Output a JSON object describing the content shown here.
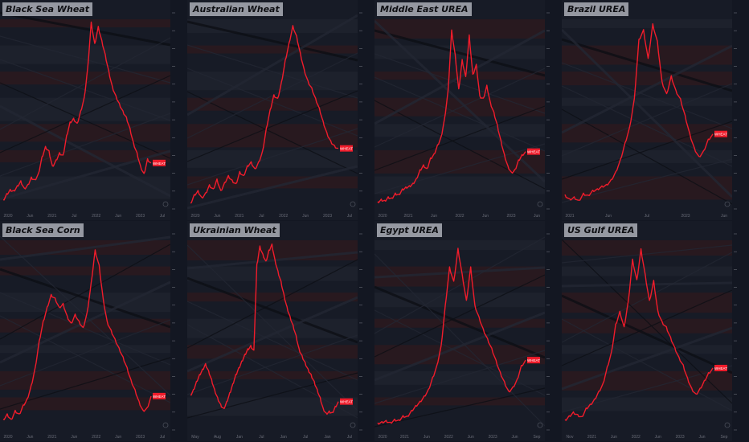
{
  "layout": {
    "columns": 4,
    "rows": 2
  },
  "colors": {
    "background": "#131722",
    "panel": "#171b26",
    "band_dark": "#1e222d",
    "band_red": "#2a1a1f",
    "line": "#f01c2b",
    "diag": "#232733",
    "grid": "#262a35",
    "axis_text": "#6a6d78",
    "label_bg": "#f01c2b"
  },
  "price_label_text": "WHEAT",
  "chart_data": [
    {
      "type": "line",
      "title": "Black Sea Wheat",
      "x_ticks": [
        "2020",
        "Jun",
        "2021",
        "Jul",
        "2022",
        "Jun",
        "2023",
        "Jul"
      ],
      "y_ticks": [],
      "series": [
        {
          "values": [
            195,
            205,
            212,
            210,
            218,
            226,
            214,
            220,
            232,
            228,
            238,
            265,
            282,
            275,
            250,
            260,
            272,
            268,
            300,
            322,
            328,
            320,
            340,
            362,
            410,
            485,
            450,
            478,
            455,
            432,
            405,
            380,
            365,
            352,
            340,
            330,
            312,
            288,
            272,
            250,
            238,
            262,
            255
          ]
        }
      ],
      "ylim": [
        180,
        500
      ]
    },
    {
      "type": "line",
      "title": "Australian Wheat",
      "x_ticks": [
        "2020",
        "Jun",
        "2021",
        "Jul",
        "2022",
        "Jun",
        "2023",
        "Jul"
      ],
      "y_ticks": [],
      "series": [
        {
          "values": [
            190,
            205,
            212,
            200,
            208,
            222,
            215,
            232,
            212,
            226,
            238,
            230,
            224,
            245,
            238,
            255,
            262,
            250,
            262,
            280,
            320,
            352,
            378,
            372,
            400,
            438,
            468,
            498,
            480,
            450,
            422,
            402,
            390,
            372,
            355,
            332,
            312,
            298,
            290,
            285
          ]
        }
      ],
      "ylim": [
        180,
        520
      ]
    },
    {
      "type": "line",
      "title": "Middle East UREA",
      "x_ticks": [
        "2020",
        "2021",
        "Jun",
        "2022",
        "Jun",
        "2023",
        "Jun"
      ],
      "y_ticks": [],
      "series": [
        {
          "values": [
            180,
            190,
            185,
            200,
            195,
            215,
            210,
            232,
            240,
            245,
            255,
            275,
            310,
            330,
            315,
            358,
            375,
            412,
            445,
            520,
            635,
            880,
            780,
            640,
            760,
            690,
            860,
            700,
            740,
            612,
            602,
            655,
            585,
            545,
            492,
            430,
            372,
            325,
            300,
            312,
            350,
            372,
            384
          ]
        }
      ],
      "ylim": [
        150,
        950
      ]
    },
    {
      "type": "line",
      "title": "Brazil UREA",
      "x_ticks": [
        "2021",
        "Jun",
        "Jul",
        "2023",
        "Jun"
      ],
      "y_ticks": [],
      "series": [
        {
          "values": [
            270,
            255,
            262,
            250,
            275,
            268,
            285,
            290,
            300,
            305,
            322,
            350,
            392,
            450,
            505,
            602,
            808,
            842,
            742,
            862,
            802,
            662,
            620,
            682,
            632,
            602,
            545,
            482,
            432,
            402,
            422,
            462,
            480
          ]
        }
      ],
      "ylim": [
        220,
        900
      ]
    },
    {
      "type": "line",
      "title": "Black Sea Corn",
      "x_ticks": [
        "2020",
        "Jun",
        "2021",
        "Jun",
        "2022",
        "Jun",
        "2023",
        "Jul"
      ],
      "y_ticks": [],
      "series": [
        {
          "values": [
            152,
            158,
            152,
            162,
            158,
            168,
            175,
            190,
            210,
            240,
            262,
            278,
            292,
            288,
            278,
            282,
            268,
            260,
            270,
            262,
            255,
            272,
            305,
            342,
            325,
            288,
            262,
            252,
            242,
            232,
            222,
            210,
            196,
            185,
            172,
            162,
            165,
            178
          ]
        }
      ],
      "ylim": [
        140,
        360
      ]
    },
    {
      "type": "line",
      "title": "Ukrainian Wheat",
      "x_ticks": [
        "May",
        "Aug",
        "Jan",
        "Jul",
        "Jan",
        "Jul",
        "Jan",
        "Jul"
      ],
      "y_ticks": [],
      "series": [
        {
          "values": [
            232,
            240,
            252,
            262,
            270,
            278,
            268,
            255,
            240,
            228,
            218,
            212,
            222,
            235,
            248,
            262,
            272,
            282,
            292,
            300,
            305,
            298,
            425,
            452,
            440,
            430,
            446,
            455,
            432,
            415,
            400,
            380,
            362,
            348,
            335,
            320,
            300,
            290,
            280,
            270,
            262,
            252,
            240,
            228,
            212,
            205,
            208,
            206,
            215,
            222
          ]
        }
      ],
      "ylim": [
        180,
        470
      ]
    },
    {
      "type": "line",
      "title": "Egypt UREA",
      "x_ticks": [
        "2020",
        "2021",
        "Jun",
        "2022",
        "Jun",
        "2023",
        "Jun",
        "Sep"
      ],
      "y_ticks": [],
      "series": [
        {
          "values": [
            210,
            215,
            220,
            212,
            225,
            222,
            240,
            238,
            262,
            282,
            300,
            322,
            350,
            400,
            450,
            532,
            702,
            862,
            802,
            940,
            832,
            722,
            862,
            702,
            652,
            602,
            562,
            522,
            472,
            422,
            382,
            342,
            360,
            392,
            450,
            472
          ]
        }
      ],
      "ylim": [
        180,
        1000
      ]
    },
    {
      "type": "line",
      "title": "US Gulf UREA",
      "x_ticks": [
        "Nov",
        "2021",
        "Jun",
        "2022",
        "Jun",
        "2023",
        "Jun",
        "Sep"
      ],
      "y_ticks": [],
      "series": [
        {
          "values": [
            240,
            255,
            270,
            260,
            252,
            285,
            300,
            320,
            350,
            380,
            445,
            502,
            610,
            660,
            600,
            702,
            862,
            782,
            902,
            802,
            702,
            780,
            660,
            620,
            600,
            560,
            520,
            482,
            452,
            402,
            362,
            340,
            362,
            392,
            422,
            440
          ]
        }
      ],
      "ylim": [
        200,
        960
      ]
    }
  ]
}
